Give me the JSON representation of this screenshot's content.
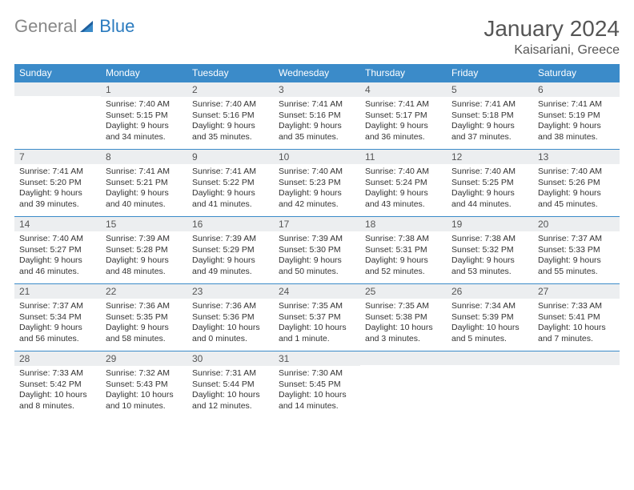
{
  "logo": {
    "text1": "General",
    "text2": "Blue"
  },
  "title": {
    "month": "January 2024",
    "location": "Kaisariani, Greece"
  },
  "colors": {
    "header_bg": "#3b8bc9",
    "header_fg": "#ffffff",
    "numrow_bg": "#eceef0",
    "numrow_border": "#3b8bc9"
  },
  "weekdays": [
    "Sunday",
    "Monday",
    "Tuesday",
    "Wednesday",
    "Thursday",
    "Friday",
    "Saturday"
  ],
  "start_offset": 1,
  "days": [
    {
      "n": 1,
      "sr": "7:40 AM",
      "ss": "5:15 PM",
      "d": "9 hours and 34 minutes."
    },
    {
      "n": 2,
      "sr": "7:40 AM",
      "ss": "5:16 PM",
      "d": "9 hours and 35 minutes."
    },
    {
      "n": 3,
      "sr": "7:41 AM",
      "ss": "5:16 PM",
      "d": "9 hours and 35 minutes."
    },
    {
      "n": 4,
      "sr": "7:41 AM",
      "ss": "5:17 PM",
      "d": "9 hours and 36 minutes."
    },
    {
      "n": 5,
      "sr": "7:41 AM",
      "ss": "5:18 PM",
      "d": "9 hours and 37 minutes."
    },
    {
      "n": 6,
      "sr": "7:41 AM",
      "ss": "5:19 PM",
      "d": "9 hours and 38 minutes."
    },
    {
      "n": 7,
      "sr": "7:41 AM",
      "ss": "5:20 PM",
      "d": "9 hours and 39 minutes."
    },
    {
      "n": 8,
      "sr": "7:41 AM",
      "ss": "5:21 PM",
      "d": "9 hours and 40 minutes."
    },
    {
      "n": 9,
      "sr": "7:41 AM",
      "ss": "5:22 PM",
      "d": "9 hours and 41 minutes."
    },
    {
      "n": 10,
      "sr": "7:40 AM",
      "ss": "5:23 PM",
      "d": "9 hours and 42 minutes."
    },
    {
      "n": 11,
      "sr": "7:40 AM",
      "ss": "5:24 PM",
      "d": "9 hours and 43 minutes."
    },
    {
      "n": 12,
      "sr": "7:40 AM",
      "ss": "5:25 PM",
      "d": "9 hours and 44 minutes."
    },
    {
      "n": 13,
      "sr": "7:40 AM",
      "ss": "5:26 PM",
      "d": "9 hours and 45 minutes."
    },
    {
      "n": 14,
      "sr": "7:40 AM",
      "ss": "5:27 PM",
      "d": "9 hours and 46 minutes."
    },
    {
      "n": 15,
      "sr": "7:39 AM",
      "ss": "5:28 PM",
      "d": "9 hours and 48 minutes."
    },
    {
      "n": 16,
      "sr": "7:39 AM",
      "ss": "5:29 PM",
      "d": "9 hours and 49 minutes."
    },
    {
      "n": 17,
      "sr": "7:39 AM",
      "ss": "5:30 PM",
      "d": "9 hours and 50 minutes."
    },
    {
      "n": 18,
      "sr": "7:38 AM",
      "ss": "5:31 PM",
      "d": "9 hours and 52 minutes."
    },
    {
      "n": 19,
      "sr": "7:38 AM",
      "ss": "5:32 PM",
      "d": "9 hours and 53 minutes."
    },
    {
      "n": 20,
      "sr": "7:37 AM",
      "ss": "5:33 PM",
      "d": "9 hours and 55 minutes."
    },
    {
      "n": 21,
      "sr": "7:37 AM",
      "ss": "5:34 PM",
      "d": "9 hours and 56 minutes."
    },
    {
      "n": 22,
      "sr": "7:36 AM",
      "ss": "5:35 PM",
      "d": "9 hours and 58 minutes."
    },
    {
      "n": 23,
      "sr": "7:36 AM",
      "ss": "5:36 PM",
      "d": "10 hours and 0 minutes."
    },
    {
      "n": 24,
      "sr": "7:35 AM",
      "ss": "5:37 PM",
      "d": "10 hours and 1 minute."
    },
    {
      "n": 25,
      "sr": "7:35 AM",
      "ss": "5:38 PM",
      "d": "10 hours and 3 minutes."
    },
    {
      "n": 26,
      "sr": "7:34 AM",
      "ss": "5:39 PM",
      "d": "10 hours and 5 minutes."
    },
    {
      "n": 27,
      "sr": "7:33 AM",
      "ss": "5:41 PM",
      "d": "10 hours and 7 minutes."
    },
    {
      "n": 28,
      "sr": "7:33 AM",
      "ss": "5:42 PM",
      "d": "10 hours and 8 minutes."
    },
    {
      "n": 29,
      "sr": "7:32 AM",
      "ss": "5:43 PM",
      "d": "10 hours and 10 minutes."
    },
    {
      "n": 30,
      "sr": "7:31 AM",
      "ss": "5:44 PM",
      "d": "10 hours and 12 minutes."
    },
    {
      "n": 31,
      "sr": "7:30 AM",
      "ss": "5:45 PM",
      "d": "10 hours and 14 minutes."
    }
  ],
  "labels": {
    "sunrise": "Sunrise:",
    "sunset": "Sunset:",
    "daylight": "Daylight:"
  }
}
